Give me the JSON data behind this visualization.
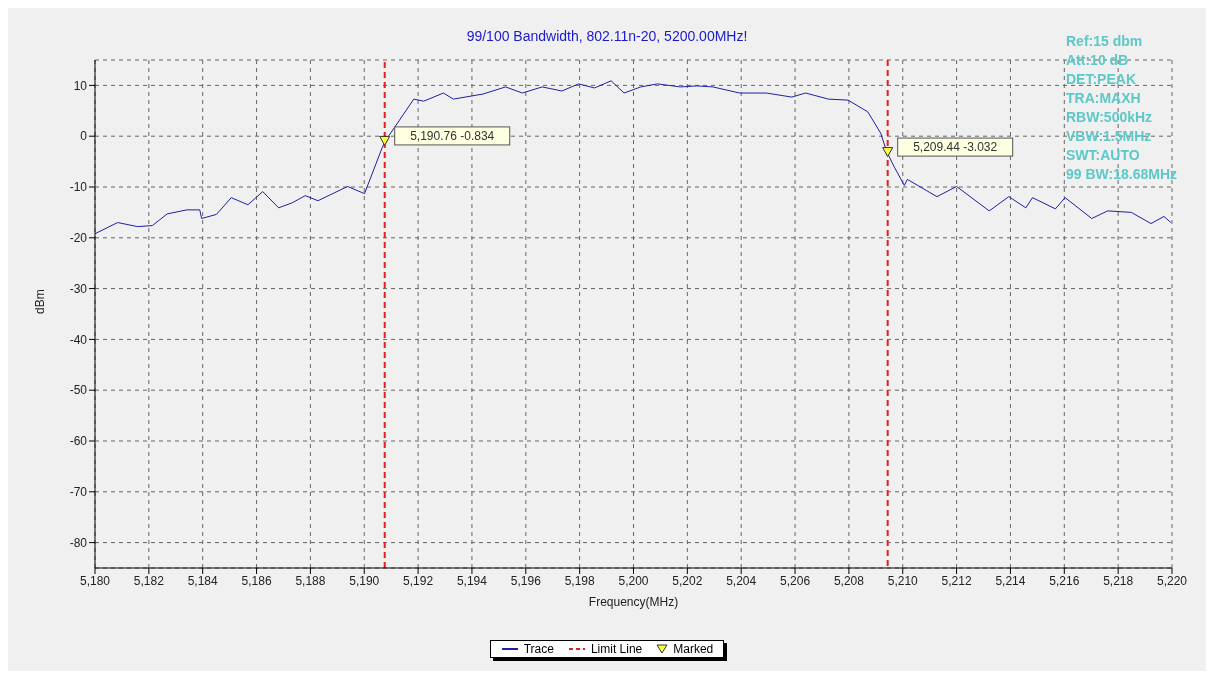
{
  "chart_data": {
    "type": "line",
    "title": "99/100 Bandwidth, 802.11n-20, 5200.00MHz!",
    "xlabel": "Frequency(MHz)",
    "ylabel": "dBm",
    "annotations": [
      "Ref:15 dbm",
      "Att:10 dB",
      "DET:PEAK",
      "TRA:MAXH",
      "RBW:500kHz",
      "VBW:1.5MHz",
      "SWT:AUTO",
      "99 BW:18.68MHz"
    ],
    "series": [
      {
        "name": "Trace",
        "color": "#2020a0",
        "marker": "none",
        "line_style": "solid",
        "x": [
          5180,
          5180.84,
          5181.58,
          5182.13,
          5182.68,
          5183.41,
          5183.89,
          5183.96,
          5184.51,
          5185.06,
          5185.68,
          5186.23,
          5186.82,
          5187.33,
          5187.81,
          5188.28,
          5189.38,
          5190.01,
          5190.67,
          5190.8,
          5191.84,
          5192.21,
          5192.94,
          5193.31,
          5194.41,
          5195.25,
          5195.87,
          5196.61,
          5197.34,
          5197.96,
          5198.55,
          5199.17,
          5199.65,
          5200.27,
          5200.89,
          5201.74,
          5202.36,
          5202.95,
          5203.94,
          5204.93,
          5205.88,
          5206.39,
          5207.24,
          5207.97,
          5208.7,
          5209.18,
          5209.4,
          5209.69,
          5210.06,
          5210.17,
          5211.27,
          5212,
          5213.21,
          5213.94,
          5214.57,
          5214.82,
          5215.67,
          5216.03,
          5217.02,
          5217.61,
          5218.49,
          5219.22,
          5219.7,
          5219.96
        ],
        "values": [
          -19.2,
          -17,
          -17.8,
          -17.6,
          -15.3,
          -14.5,
          -14.5,
          -16.2,
          -15.4,
          -12.1,
          -13.5,
          -10.9,
          -14.1,
          -13.1,
          -11.7,
          -12.7,
          -9.9,
          -11.3,
          -2.2,
          -0.8,
          7.3,
          6.9,
          8.5,
          7.3,
          8.3,
          9.7,
          8.5,
          9.7,
          8.9,
          10.3,
          9.5,
          10.9,
          8.5,
          9.7,
          10.3,
          9.7,
          9.9,
          9.7,
          8.5,
          8.5,
          7.7,
          8.5,
          7.3,
          7.1,
          4.8,
          0.6,
          -3.0,
          -6.1,
          -9.7,
          -8.5,
          -11.9,
          -9.9,
          -14.7,
          -11.9,
          -14.1,
          -12.1,
          -14.3,
          -12.1,
          -16.2,
          -14.7,
          -15,
          -17.2,
          -15.8,
          -17
        ]
      },
      {
        "name": "Limit Line",
        "type": "line",
        "color": "#e02020",
        "marker": "none",
        "line_style": "dashed",
        "x": [
          5190.76,
          5190.76,
          5200,
          5209.44,
          5209.44
        ],
        "values": [
          -85,
          15,
          null,
          15,
          -85
        ]
      },
      {
        "name": "Marked",
        "type": "scatter",
        "color": "#ffff40",
        "marker": "triangle",
        "x": [
          5190.76,
          5209.44
        ],
        "values": [
          -0.834,
          -3.032
        ],
        "value_labels": [
          "5,190.76 -0.834",
          "5,209.44 -3.032"
        ]
      }
    ],
    "xlim": [
      5180,
      5220
    ],
    "xticks": [
      {
        "value": 5180,
        "label": "5,180"
      },
      {
        "value": 5182,
        "label": "5,182"
      },
      {
        "value": 5184,
        "label": "5,184"
      },
      {
        "value": 5186,
        "label": "5,186"
      },
      {
        "value": 5188,
        "label": "5,188"
      },
      {
        "value": 5190,
        "label": "5,190"
      },
      {
        "value": 5192,
        "label": "5,192"
      },
      {
        "value": 5194,
        "label": "5,194"
      },
      {
        "value": 5196,
        "label": "5,196"
      },
      {
        "value": 5198,
        "label": "5,198"
      },
      {
        "value": 5200,
        "label": "5,200"
      },
      {
        "value": 5202,
        "label": "5,202"
      },
      {
        "value": 5204,
        "label": "5,204"
      },
      {
        "value": 5206,
        "label": "5,206"
      },
      {
        "value": 5208,
        "label": "5,208"
      },
      {
        "value": 5210,
        "label": "5,210"
      },
      {
        "value": 5212,
        "label": "5,212"
      },
      {
        "value": 5214,
        "label": "5,214"
      },
      {
        "value": 5216,
        "label": "5,216"
      },
      {
        "value": 5218,
        "label": "5,218"
      },
      {
        "value": 5220,
        "label": "5,220"
      }
    ],
    "ylim": [
      -85,
      15
    ],
    "yticks": [
      -80,
      -70,
      -60,
      -50,
      -40,
      -30,
      -20,
      -10,
      0,
      10
    ],
    "grid": true,
    "legend": "bottom"
  }
}
